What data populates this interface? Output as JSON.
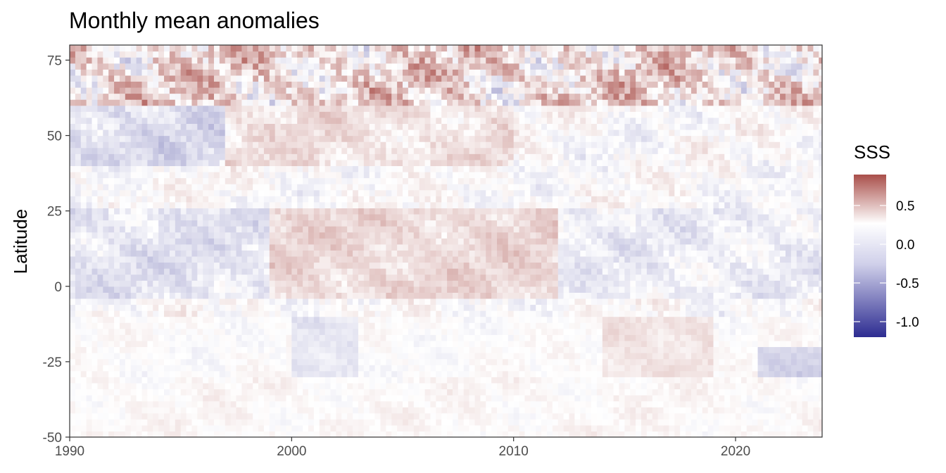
{
  "chart_data": {
    "type": "heatmap",
    "title": "Monthly mean anomalies",
    "xlabel": "",
    "ylabel": "Latitude",
    "xlim": [
      1990,
      2023.9
    ],
    "ylim": [
      -50,
      80
    ],
    "x_ticks": [
      1990,
      2000,
      2010,
      2020
    ],
    "x_tick_labels": [
      "1990",
      "2000",
      "2010",
      "2020"
    ],
    "y_ticks": [
      -50,
      -25,
      0,
      25,
      50,
      75
    ],
    "y_tick_labels": [
      "-50",
      "-25",
      "0",
      "25",
      "50",
      "75"
    ],
    "grid": false,
    "legend": {
      "title": "SSS",
      "placement": "right",
      "range": [
        -1.2,
        0.9
      ],
      "breaks": [
        0.5,
        0.0,
        -0.5,
        -1.0
      ],
      "break_labels": [
        "0.5",
        "0.0",
        "-0.5",
        "-1.0"
      ],
      "colors": {
        "high": "#b2182b",
        "mid": "#ffffff",
        "low": "#2d2c91"
      }
    },
    "data_description_grid": {
      "x_step_years": 0.25,
      "y_step_degrees": 2
    },
    "anomaly_pattern": [
      {
        "lat_range": [
          60,
          80
        ],
        "period": [
          1990,
          2024
        ],
        "typical_value": 0.2,
        "note_values": "high variability, alternating +/-0.8"
      },
      {
        "lat_range": [
          40,
          60
        ],
        "period": [
          1990,
          1997
        ],
        "typical_value": -0.2
      },
      {
        "lat_range": [
          40,
          60
        ],
        "period": [
          1997,
          2010
        ],
        "typical_value": 0.15
      },
      {
        "lat_range": [
          -5,
          25
        ],
        "period": [
          1990,
          1999
        ],
        "typical_value": -0.15
      },
      {
        "lat_range": [
          -5,
          25
        ],
        "period": [
          1999,
          2012
        ],
        "typical_value": 0.2
      },
      {
        "lat_range": [
          -5,
          25
        ],
        "period": [
          2012,
          2024
        ],
        "typical_value": -0.1
      },
      {
        "lat_range": [
          -30,
          -10
        ],
        "period": [
          2000,
          2003
        ],
        "typical_value": -0.15
      },
      {
        "lat_range": [
          -30,
          -10
        ],
        "period": [
          2014,
          2019
        ],
        "typical_value": 0.15
      },
      {
        "lat_range": [
          -30,
          -20
        ],
        "period": [
          2021,
          2024
        ],
        "typical_value": -0.25
      },
      {
        "lat_range": [
          -50,
          -30
        ],
        "period": [
          1990,
          2024
        ],
        "typical_value": 0.03
      }
    ]
  }
}
